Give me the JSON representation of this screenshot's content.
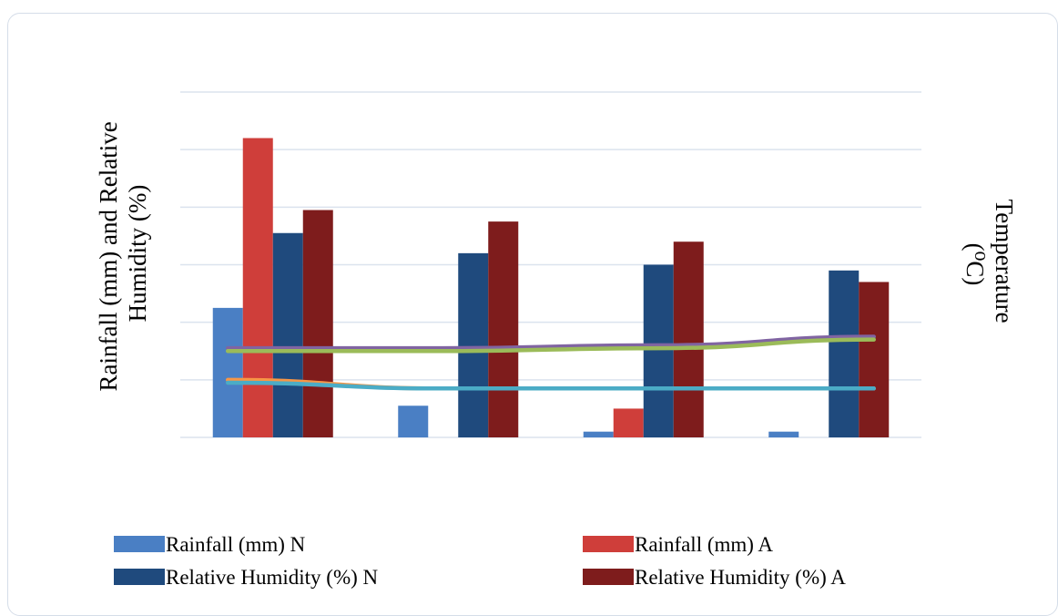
{
  "chart_data": {
    "type": "bar",
    "categories": [
      "",
      "",
      "",
      ""
    ],
    "y_axis_title_lines": [
      "Rainfall (mm) and Relative",
      "Humidity (%)"
    ],
    "y2_axis_title_lines": [
      "Temperature",
      "(⁰C)"
    ],
    "ylim": [
      0,
      120
    ],
    "gridlines": true,
    "legend_position": "bottom",
    "series": [
      {
        "name": "Rainfall (mm) N",
        "type": "bar",
        "color": "#4a7fc4",
        "values": [
          45,
          11,
          2,
          2
        ]
      },
      {
        "name": "Rainfall (mm) A",
        "type": "bar",
        "color": "#cf3e3a",
        "values": [
          104,
          0,
          10,
          0
        ]
      },
      {
        "name": "Relative Humidity (%) N",
        "type": "bar",
        "color": "#1f4a7d",
        "values": [
          71,
          64,
          60,
          58
        ]
      },
      {
        "name": "Relative Humidity (%) A",
        "type": "bar",
        "color": "#7e1c1c",
        "values": [
          79,
          75,
          68,
          54
        ]
      }
    ],
    "lines": [
      {
        "color": "#8064a2",
        "values": [
          31,
          31,
          32,
          35
        ]
      },
      {
        "color": "#9bbb59",
        "values": [
          30,
          30,
          31,
          34
        ]
      },
      {
        "color": "#f79646",
        "values": [
          20,
          17,
          17,
          17
        ]
      },
      {
        "color": "#4bacc6",
        "values": [
          19,
          17,
          17,
          17
        ]
      }
    ]
  }
}
